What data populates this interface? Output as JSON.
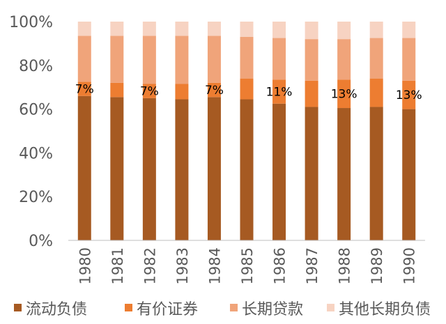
{
  "chart_data": {
    "type": "bar",
    "stacked": true,
    "categories": [
      "1980",
      "1981",
      "1982",
      "1983",
      "1984",
      "1985",
      "1986",
      "1987",
      "1988",
      "1989",
      "1990"
    ],
    "series": [
      {
        "name": "流动负债",
        "color": "#A65A22",
        "values": [
          66,
          65.5,
          65,
          64.5,
          65.5,
          64.5,
          62.5,
          61,
          60.5,
          61,
          60
        ]
      },
      {
        "name": "有价证券",
        "color": "#ED7D31",
        "values": [
          6.5,
          6.5,
          6.5,
          7,
          6.5,
          9.5,
          11,
          12,
          13,
          13,
          13
        ]
      },
      {
        "name": "长期贷款",
        "color": "#F0A47A",
        "values": [
          21,
          21.5,
          22,
          22,
          21.5,
          19,
          19,
          19,
          18.5,
          18.5,
          19.5
        ]
      },
      {
        "name": "其他长期负债",
        "color": "#F7D3C2",
        "values": [
          6.5,
          6.5,
          6.5,
          6.5,
          6.5,
          7,
          7.5,
          8,
          8,
          7.5,
          7.5
        ]
      }
    ],
    "data_labels": [
      {
        "category": "1980",
        "text": "7%"
      },
      {
        "category": "1982",
        "text": "7%"
      },
      {
        "category": "1984",
        "text": "7%"
      },
      {
        "category": "1986",
        "text": "11%"
      },
      {
        "category": "1988",
        "text": "13%"
      },
      {
        "category": "1990",
        "text": "13%"
      }
    ],
    "y_ticks": [
      "0%",
      "20%",
      "40%",
      "60%",
      "80%",
      "100%"
    ],
    "ylim": [
      0,
      100
    ],
    "grid": false,
    "legend_position": "bottom"
  }
}
